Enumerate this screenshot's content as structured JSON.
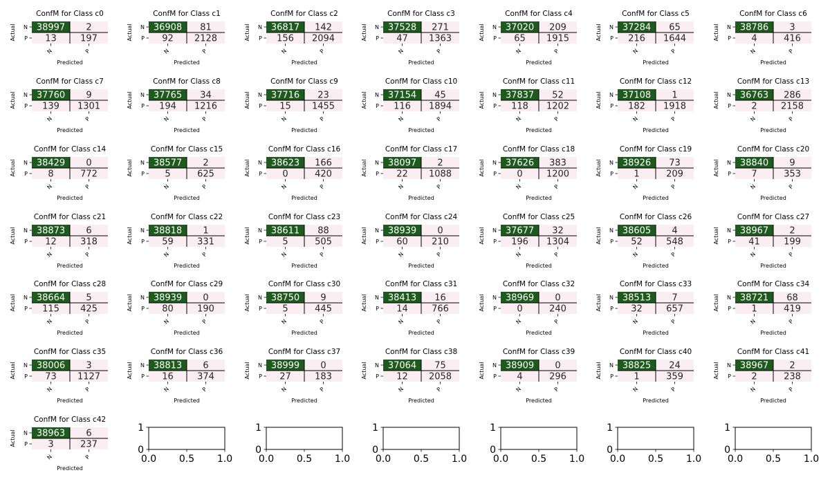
{
  "colors": {
    "high": "#1e5a1e",
    "low": "#fbeef3",
    "text_on_high": "#ffffff",
    "text_on_low": "#262626",
    "border": "#000000"
  },
  "labels": {
    "xlabel": "Predicted",
    "ylabel": "Actual",
    "tick_negative": "N",
    "tick_positive": "P"
  },
  "empty_axes": {
    "xticks": [
      "0.0",
      "0.5",
      "1.0"
    ],
    "yticks": [
      "0",
      "1"
    ]
  },
  "chart_data": {
    "type": "heatmap",
    "layout": "grid 7 columns x 7 rows",
    "matrices": [
      {
        "title": "ConfM for Class c0",
        "values": [
          [
            38997,
            2
          ],
          [
            13,
            197
          ]
        ]
      },
      {
        "title": "ConfM for Class c1",
        "values": [
          [
            36908,
            81
          ],
          [
            92,
            2128
          ]
        ]
      },
      {
        "title": "ConfM for Class c2",
        "values": [
          [
            36817,
            142
          ],
          [
            156,
            2094
          ]
        ]
      },
      {
        "title": "ConfM for Class c3",
        "values": [
          [
            37528,
            271
          ],
          [
            47,
            1363
          ]
        ]
      },
      {
        "title": "ConfM for Class c4",
        "values": [
          [
            37020,
            209
          ],
          [
            65,
            1915
          ]
        ]
      },
      {
        "title": "ConfM for Class c5",
        "values": [
          [
            37284,
            65
          ],
          [
            216,
            1644
          ]
        ]
      },
      {
        "title": "ConfM for Class c6",
        "values": [
          [
            38786,
            3
          ],
          [
            4,
            416
          ]
        ]
      },
      {
        "title": "ConfM for Class c7",
        "values": [
          [
            37760,
            9
          ],
          [
            139,
            1301
          ]
        ]
      },
      {
        "title": "ConfM for Class c8",
        "values": [
          [
            37765,
            34
          ],
          [
            194,
            1216
          ]
        ]
      },
      {
        "title": "ConfM for Class c9",
        "values": [
          [
            37716,
            23
          ],
          [
            15,
            1455
          ]
        ]
      },
      {
        "title": "ConfM for Class c10",
        "values": [
          [
            37154,
            45
          ],
          [
            116,
            1894
          ]
        ]
      },
      {
        "title": "ConfM for Class c11",
        "values": [
          [
            37837,
            52
          ],
          [
            118,
            1202
          ]
        ]
      },
      {
        "title": "ConfM for Class c12",
        "values": [
          [
            37108,
            1
          ],
          [
            182,
            1918
          ]
        ]
      },
      {
        "title": "ConfM for Class c13",
        "values": [
          [
            36763,
            286
          ],
          [
            2,
            2158
          ]
        ]
      },
      {
        "title": "ConfM for Class c14",
        "values": [
          [
            38429,
            0
          ],
          [
            8,
            772
          ]
        ]
      },
      {
        "title": "ConfM for Class c15",
        "values": [
          [
            38577,
            2
          ],
          [
            5,
            625
          ]
        ]
      },
      {
        "title": "ConfM for Class c16",
        "values": [
          [
            38623,
            166
          ],
          [
            0,
            420
          ]
        ]
      },
      {
        "title": "ConfM for Class c17",
        "values": [
          [
            38097,
            2
          ],
          [
            22,
            1088
          ]
        ]
      },
      {
        "title": "ConfM for Class c18",
        "values": [
          [
            37626,
            383
          ],
          [
            0,
            1200
          ]
        ]
      },
      {
        "title": "ConfM for Class c19",
        "values": [
          [
            38926,
            73
          ],
          [
            1,
            209
          ]
        ]
      },
      {
        "title": "ConfM for Class c20",
        "values": [
          [
            38840,
            9
          ],
          [
            7,
            353
          ]
        ]
      },
      {
        "title": "ConfM for Class c21",
        "values": [
          [
            38873,
            6
          ],
          [
            12,
            318
          ]
        ]
      },
      {
        "title": "ConfM for Class c22",
        "values": [
          [
            38818,
            1
          ],
          [
            59,
            331
          ]
        ]
      },
      {
        "title": "ConfM for Class c23",
        "values": [
          [
            38611,
            88
          ],
          [
            5,
            505
          ]
        ]
      },
      {
        "title": "ConfM for Class c24",
        "values": [
          [
            38939,
            0
          ],
          [
            60,
            210
          ]
        ]
      },
      {
        "title": "ConfM for Class c25",
        "values": [
          [
            37677,
            32
          ],
          [
            196,
            1304
          ]
        ]
      },
      {
        "title": "ConfM for Class c26",
        "values": [
          [
            38605,
            4
          ],
          [
            52,
            548
          ]
        ]
      },
      {
        "title": "ConfM for Class c27",
        "values": [
          [
            38967,
            2
          ],
          [
            41,
            199
          ]
        ]
      },
      {
        "title": "ConfM for Class c28",
        "values": [
          [
            38664,
            5
          ],
          [
            115,
            425
          ]
        ]
      },
      {
        "title": "ConfM for Class c29",
        "values": [
          [
            38939,
            0
          ],
          [
            80,
            190
          ]
        ]
      },
      {
        "title": "ConfM for Class c30",
        "values": [
          [
            38750,
            9
          ],
          [
            5,
            445
          ]
        ]
      },
      {
        "title": "ConfM for Class c31",
        "values": [
          [
            38413,
            16
          ],
          [
            14,
            766
          ]
        ]
      },
      {
        "title": "ConfM for Class c32",
        "values": [
          [
            38969,
            0
          ],
          [
            0,
            240
          ]
        ]
      },
      {
        "title": "ConfM for Class c33",
        "values": [
          [
            38513,
            7
          ],
          [
            32,
            657
          ]
        ]
      },
      {
        "title": "ConfM for Class c34",
        "values": [
          [
            38721,
            68
          ],
          [
            1,
            419
          ]
        ]
      },
      {
        "title": "ConfM for Class c35",
        "values": [
          [
            38006,
            3
          ],
          [
            73,
            1127
          ]
        ]
      },
      {
        "title": "ConfM for Class c36",
        "values": [
          [
            38813,
            6
          ],
          [
            16,
            374
          ]
        ]
      },
      {
        "title": "ConfM for Class c37",
        "values": [
          [
            38999,
            0
          ],
          [
            27,
            183
          ]
        ]
      },
      {
        "title": "ConfM for Class c38",
        "values": [
          [
            37064,
            75
          ],
          [
            12,
            2058
          ]
        ]
      },
      {
        "title": "ConfM for Class c39",
        "values": [
          [
            38909,
            0
          ],
          [
            4,
            296
          ]
        ]
      },
      {
        "title": "ConfM for Class c40",
        "values": [
          [
            38825,
            24
          ],
          [
            1,
            359
          ]
        ]
      },
      {
        "title": "ConfM for Class c41",
        "values": [
          [
            38967,
            2
          ],
          [
            2,
            238
          ]
        ]
      },
      {
        "title": "ConfM for Class c42",
        "values": [
          [
            38963,
            6
          ],
          [
            3,
            237
          ]
        ]
      }
    ]
  }
}
